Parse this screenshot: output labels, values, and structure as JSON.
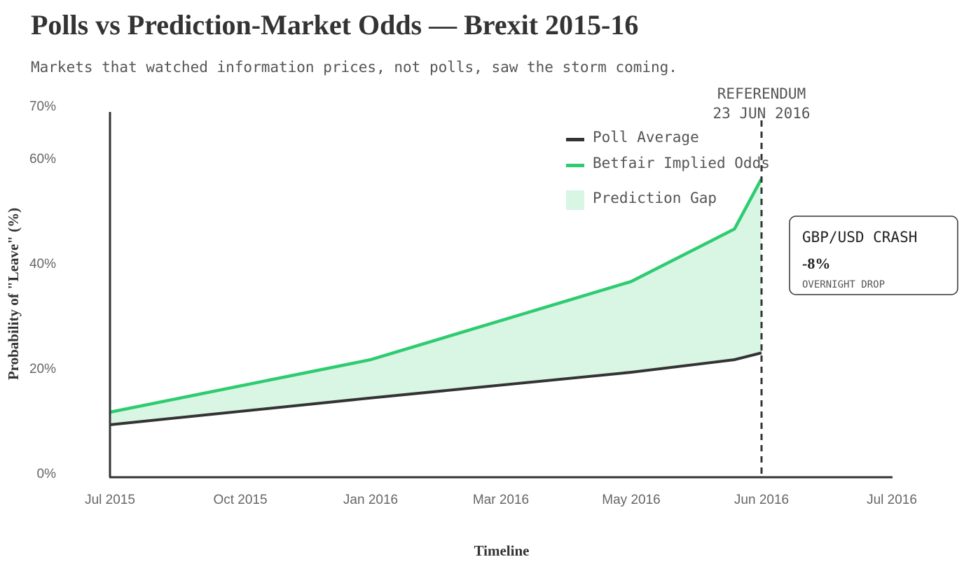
{
  "title": "Polls vs Prediction-Market Odds — Brexit 2015-16",
  "subtitle": "Markets that watched information prices, not polls, saw the storm coming.",
  "chart_data": {
    "type": "line",
    "xlabel": "Timeline",
    "ylabel": "Probability of \"Leave\" (%)",
    "ylim": [
      0,
      70
    ],
    "y_ticks": [
      0,
      20,
      40,
      60,
      70
    ],
    "y_tick_labels": [
      "0%",
      "20%",
      "40%",
      "60%",
      "70%"
    ],
    "x_ticks": [
      {
        "label": "Jul 2015",
        "date": "2015-07-01"
      },
      {
        "label": "Oct 2015",
        "date": "2015-10-01"
      },
      {
        "label": "Jan 2016",
        "date": "2016-01-01"
      },
      {
        "label": "Mar 2016",
        "date": "2016-03-01"
      },
      {
        "label": "May 2016",
        "date": "2016-05-01"
      },
      {
        "label": "Jun 2016",
        "date": "2016-06-23"
      },
      {
        "label": "Jul 2016",
        "date": "2016-07-01"
      }
    ],
    "x": [
      "2015-07-01",
      "2016-01-01",
      "2016-05-01",
      "2016-06-12",
      "2016-06-23"
    ],
    "series": [
      {
        "name": "Poll Average",
        "values": [
          9.2,
          14.3,
          19.2,
          21.6,
          22.9
        ],
        "color": "#333333"
      },
      {
        "name": "Betfair Implied Odds",
        "values": [
          11.6,
          21.6,
          36.5,
          46.5,
          56.1
        ],
        "color": "#2ecc71"
      }
    ],
    "area": {
      "name": "Prediction Gap",
      "between": [
        "Poll Average",
        "Betfair Implied Odds"
      ],
      "color": "#d9f5e3"
    },
    "legend_position": "top-right",
    "grid": false,
    "reference_line": {
      "date": "2016-06-23",
      "label_line1": "REFERENDUM",
      "label_line2": "23 JUN 2016"
    },
    "callout": {
      "title": "GBP/USD CRASH",
      "value": "-8%",
      "caption": "OVERNIGHT DROP"
    }
  }
}
